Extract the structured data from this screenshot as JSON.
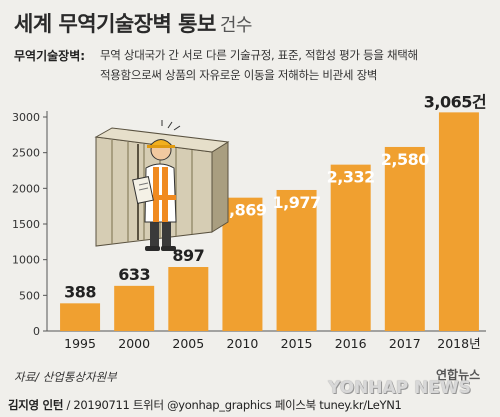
{
  "header": {
    "title": "세계 무역기술장벽 통보",
    "subtitle": "건수"
  },
  "definition": {
    "label": "무역기술장벽:",
    "line1": "무역 상대국가 간 서로 다른 기술규정, 표준, 적합성 평가 등을 채택해",
    "line2": "적용함으로써 상품의 자유로운 이동을 저해하는 비관세 장벽"
  },
  "chart_data": {
    "type": "bar",
    "title": "세계 무역기술장벽 통보",
    "subtitle": "건수",
    "categories": [
      "1995",
      "2000",
      "2005",
      "2010",
      "2015",
      "2016",
      "2017",
      "2018년"
    ],
    "values": [
      388,
      633,
      897,
      1869,
      1977,
      2332,
      2580,
      3065
    ],
    "value_labels": [
      "388",
      "633",
      "897",
      "1,869",
      "1,977",
      "2,332",
      "2,580",
      "3,065건"
    ],
    "yticks": [
      0,
      500,
      1000,
      1500,
      2000,
      2500,
      3000
    ],
    "ylim": [
      0,
      3100
    ],
    "grid": false,
    "bar_color": "#f0a030",
    "illustration": "worker-with-clipboard-and-shipping-container"
  },
  "footer": {
    "source": "자료/ 산업통상자원부",
    "author": "김지영 인턴",
    "rest": " / 20190711  트위터 @yonhap_graphics  페이스북 tuney.kr/LeYN1",
    "logo_ko": "연합뉴스",
    "logo_en": "YONHAP NEWS"
  }
}
